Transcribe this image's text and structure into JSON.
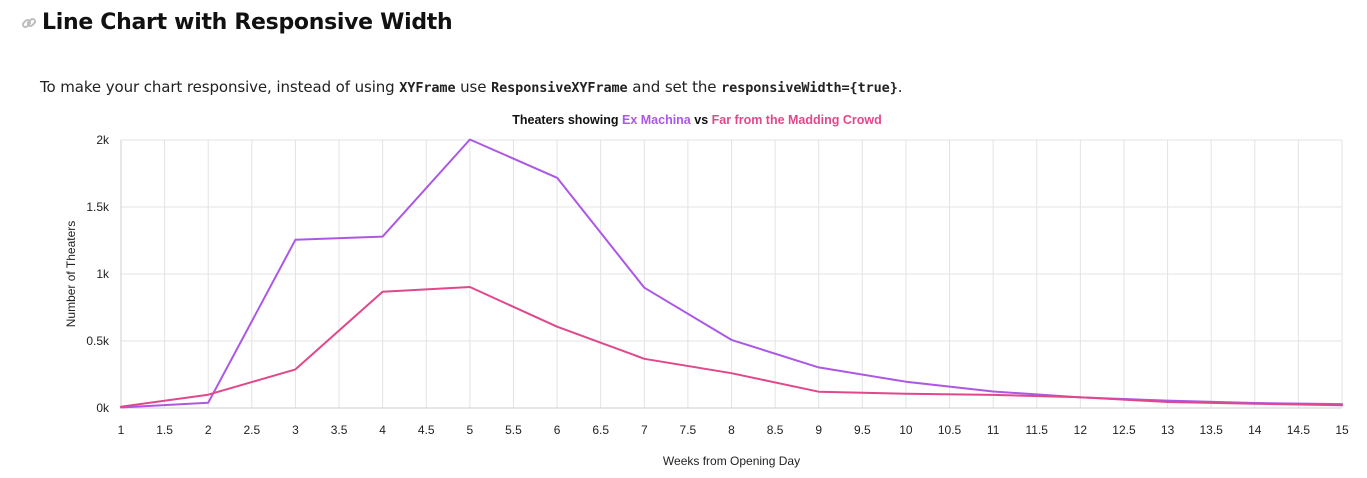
{
  "section": {
    "title": "Line Chart with Responsive Width",
    "intro": [
      {
        "text": "To make your chart responsive, instead of using ",
        "code": false
      },
      {
        "text": "XYFrame",
        "code": true
      },
      {
        "text": " use ",
        "code": false
      },
      {
        "text": "ResponsiveXYFrame",
        "code": true
      },
      {
        "text": " and set the ",
        "code": false
      },
      {
        "text": "responsiveWidth={true}",
        "code": true
      },
      {
        "text": ".",
        "code": false
      }
    ]
  },
  "icons": {
    "heading_link": "link-icon"
  },
  "chart_data": {
    "type": "line",
    "title_parts": [
      {
        "text": "Theaters showing ",
        "color": "#111111"
      },
      {
        "text": "Ex Machina",
        "color": "#ac58e5"
      },
      {
        "text": " vs ",
        "color": "#111111"
      },
      {
        "text": "Far from the Madding Crowd",
        "color": "#e0488b"
      }
    ],
    "xlabel": "Weeks from Opening Day",
    "ylabel": "Number of Theaters",
    "xlim": [
      1,
      15
    ],
    "ylim": [
      0,
      2000
    ],
    "x_ticks": [
      1,
      1.5,
      2,
      2.5,
      3,
      3.5,
      4,
      4.5,
      5,
      5.5,
      6,
      6.5,
      7,
      7.5,
      8,
      8.5,
      9,
      9.5,
      10,
      10.5,
      11,
      11.5,
      12,
      12.5,
      13,
      13.5,
      14,
      14.5,
      15
    ],
    "y_ticks": [
      {
        "value": 0,
        "label": "0k"
      },
      {
        "value": 500,
        "label": "0.5k"
      },
      {
        "value": 1000,
        "label": "1k"
      },
      {
        "value": 1500,
        "label": "1.5k"
      },
      {
        "value": 2000,
        "label": "2k"
      }
    ],
    "grid": true,
    "series": [
      {
        "name": "Ex Machina",
        "color": "#ac58e5",
        "x": [
          1,
          2,
          3,
          4,
          5,
          6,
          7,
          8,
          9,
          10,
          11,
          12,
          13,
          14,
          15
        ],
        "values": [
          4,
          39,
          1255,
          1279,
          2004,
          1718,
          898,
          508,
          303,
          196,
          123,
          79,
          55,
          37,
          29
        ]
      },
      {
        "name": "Far from the Madding Crowd",
        "color": "#e0488b",
        "x": [
          1,
          2,
          3,
          4,
          5,
          6,
          7,
          8,
          9,
          10,
          11,
          12,
          13,
          14,
          15
        ],
        "values": [
          10,
          99,
          288,
          867,
          903,
          607,
          367,
          260,
          122,
          106,
          98,
          80,
          45,
          32,
          20
        ]
      }
    ]
  }
}
